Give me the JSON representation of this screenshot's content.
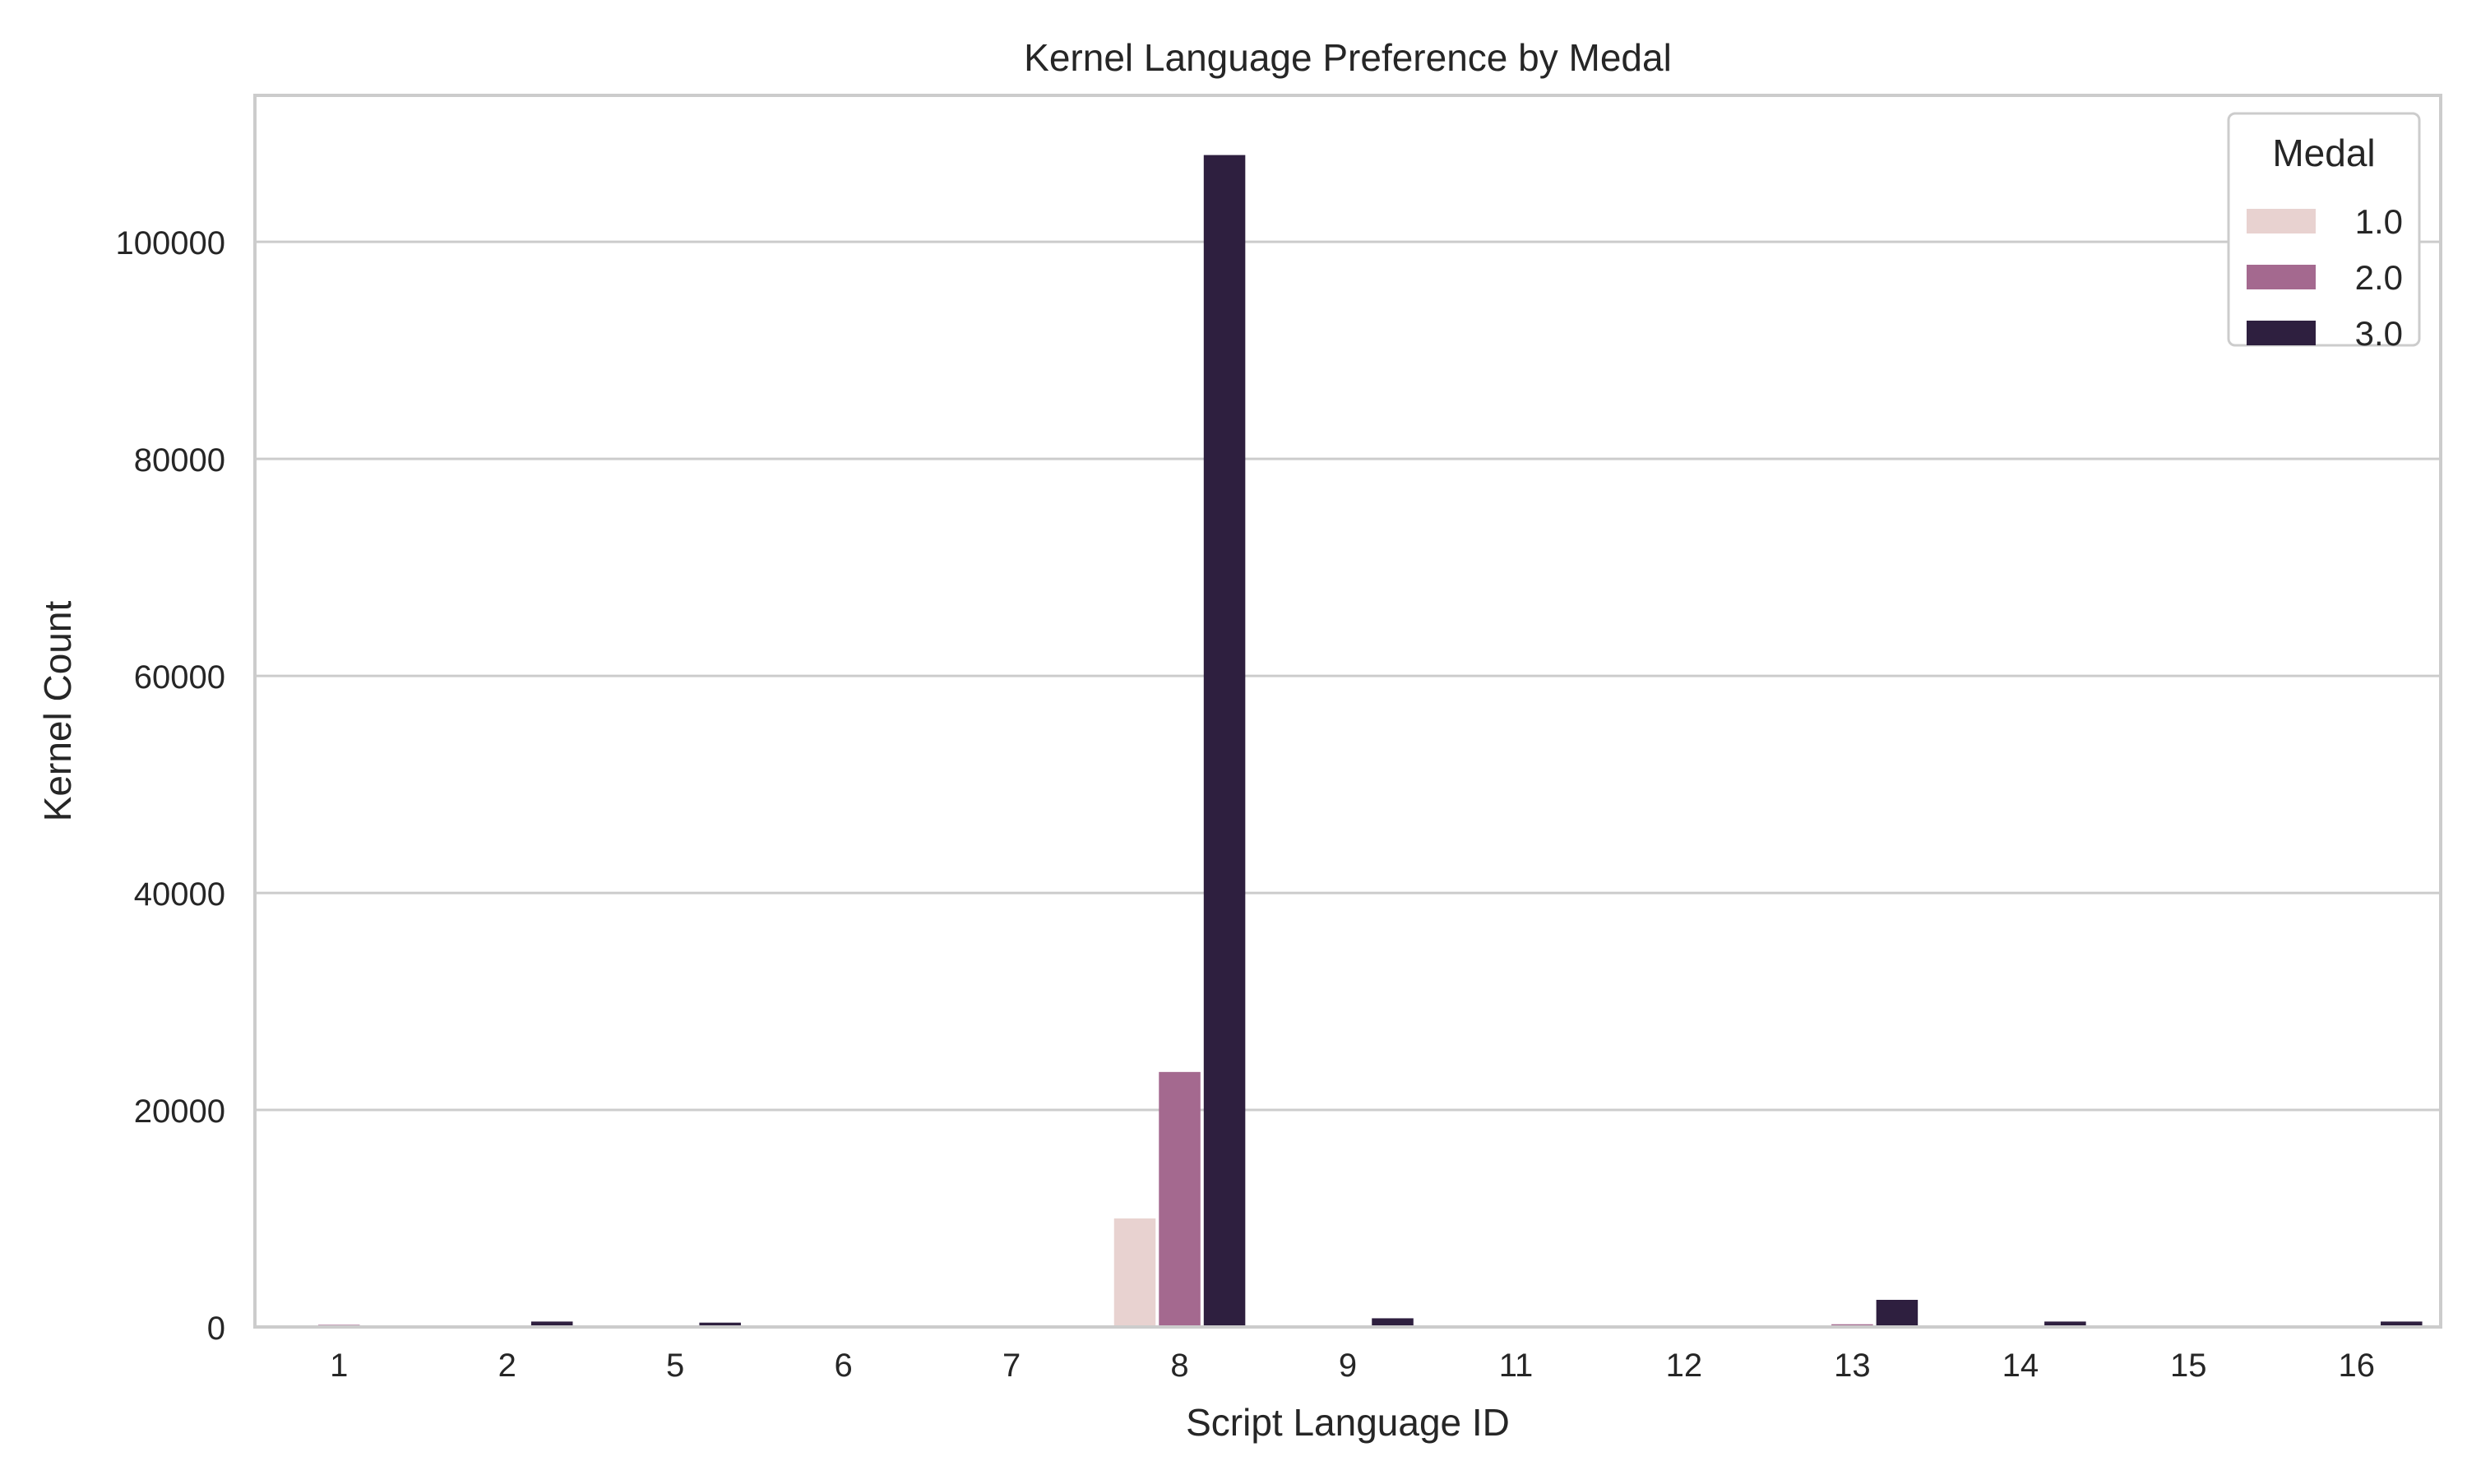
{
  "chart_data": {
    "type": "bar",
    "title": "Kernel Language Preference by Medal",
    "xlabel": "Script Language ID",
    "ylabel": "Kernel Count",
    "categories": [
      "1",
      "2",
      "5",
      "6",
      "7",
      "8",
      "9",
      "11",
      "12",
      "13",
      "14",
      "15",
      "16"
    ],
    "series": [
      {
        "name": "1.0",
        "color": "#e8d2d0",
        "values": [
          0,
          0,
          0,
          0,
          0,
          10000,
          0,
          0,
          0,
          0,
          0,
          0,
          0
        ]
      },
      {
        "name": "2.0",
        "color": "#a4698f",
        "values": [
          200,
          0,
          0,
          0,
          0,
          23500,
          0,
          0,
          0,
          250,
          0,
          0,
          0
        ]
      },
      {
        "name": "3.0",
        "color": "#2e1f3f",
        "values": [
          0,
          500,
          400,
          100,
          100,
          108000,
          800,
          0,
          0,
          2500,
          500,
          0,
          500
        ]
      }
    ],
    "ylim": [
      0,
      113500
    ],
    "yticks": [
      0,
      20000,
      40000,
      60000,
      80000,
      100000
    ],
    "grid": true,
    "legend": {
      "title": "Medal",
      "position": "top-right"
    }
  }
}
